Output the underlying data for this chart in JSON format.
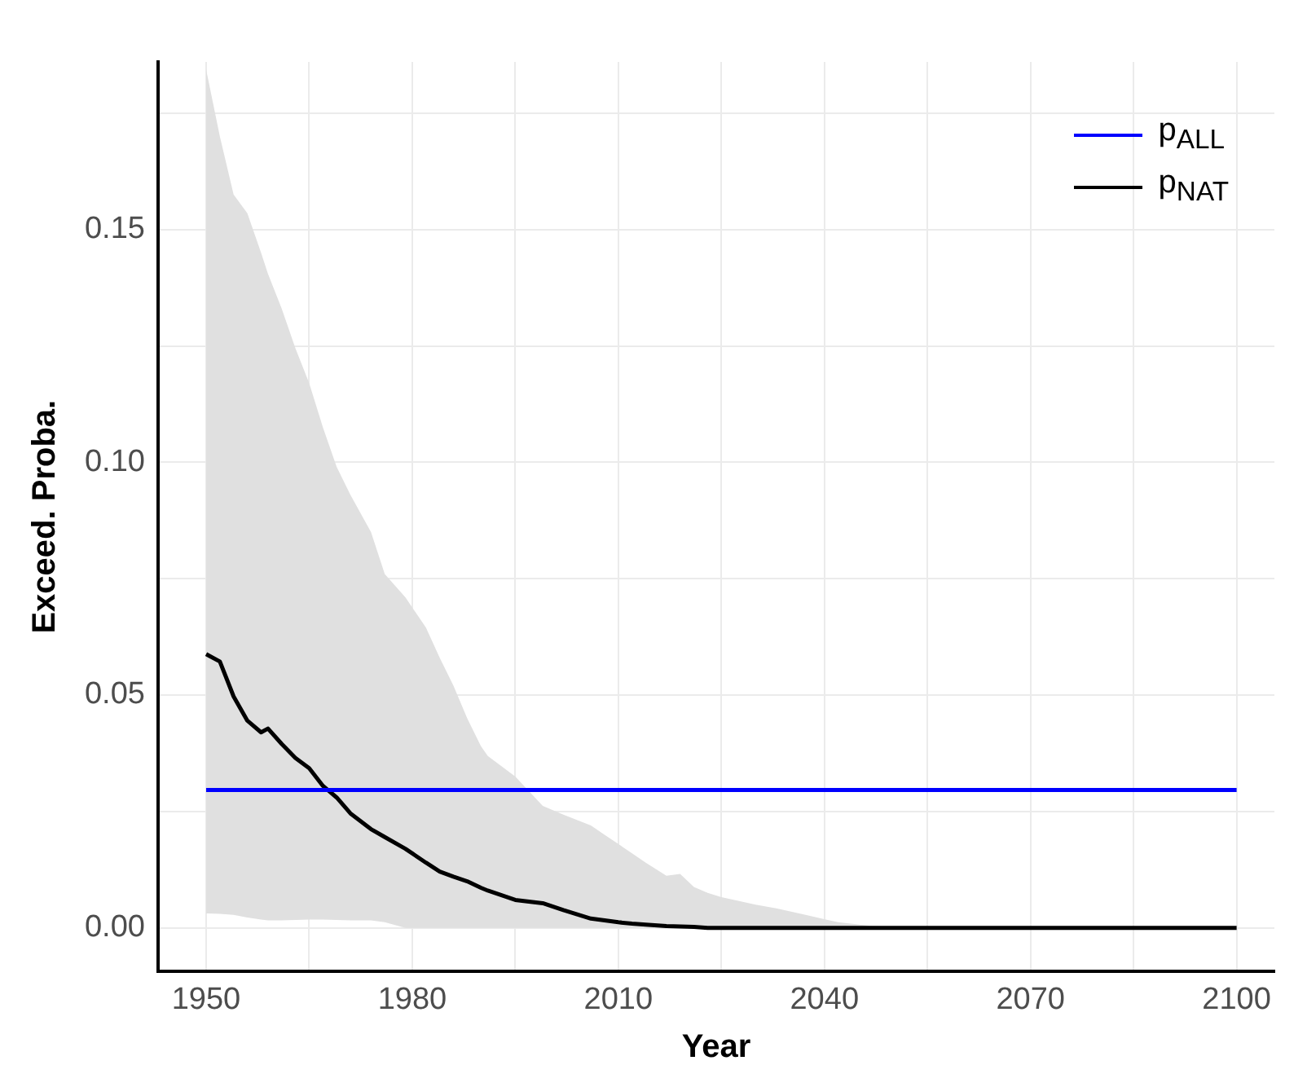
{
  "chart_data": {
    "type": "line",
    "xlabel": "Year",
    "ylabel": "Exceed. Proba.",
    "xlim": [
      1943,
      2105.5
    ],
    "ylim": [
      -0.0094,
      0.186
    ],
    "xticks": [
      {
        "value": 1950,
        "label": "1950"
      },
      {
        "value": 1965,
        "label": null
      },
      {
        "value": 1980,
        "label": "1980"
      },
      {
        "value": 1995,
        "label": null
      },
      {
        "value": 2010,
        "label": "2010"
      },
      {
        "value": 2025,
        "label": null
      },
      {
        "value": 2040,
        "label": "2040"
      },
      {
        "value": 2055,
        "label": null
      },
      {
        "value": 2070,
        "label": "2070"
      },
      {
        "value": 2085,
        "label": null
      },
      {
        "value": 2100,
        "label": "2100"
      }
    ],
    "yticks": [
      {
        "value": 0,
        "label": "0.00"
      },
      {
        "value": 0.025,
        "label": null
      },
      {
        "value": 0.05,
        "label": "0.05"
      },
      {
        "value": 0.075,
        "label": null
      },
      {
        "value": 0.1,
        "label": "0.10"
      },
      {
        "value": 0.125,
        "label": null
      },
      {
        "value": 0.15,
        "label": "0.15"
      },
      {
        "value": 0.175,
        "label": null
      }
    ],
    "grid": true,
    "legend": "top right",
    "marker": "none",
    "line_style": "solid",
    "series": [
      {
        "name": "p$_{ALL}$",
        "color": "#0000ff",
        "x": [
          1950,
          2100
        ],
        "values": [
          0.0296,
          0.0296
        ]
      },
      {
        "name": "p$_{NAT}$",
        "color": "#000000",
        "x": [
          1950,
          1952,
          1954,
          1956,
          1958,
          1959,
          1961,
          1963,
          1965,
          1967,
          1969,
          1971,
          1974,
          1976,
          1979,
          1982,
          1984,
          1986,
          1988,
          1990,
          1991,
          1995,
          1999,
          2002,
          2006,
          2008,
          2010,
          2012,
          2014,
          2017,
          2019,
          2021,
          2023,
          2025,
          2030,
          2033,
          2037,
          2042,
          2047,
          2054,
          2100
        ],
        "values": [
          0.0588,
          0.0572,
          0.0497,
          0.0445,
          0.042,
          0.0428,
          0.0395,
          0.0365,
          0.0343,
          0.0305,
          0.028,
          0.0246,
          0.0212,
          0.0195,
          0.017,
          0.014,
          0.0121,
          0.011,
          0.01,
          0.0086,
          0.008,
          0.006,
          0.0053,
          0.0038,
          0.002,
          0.0016,
          0.0012,
          0.0009,
          0.0007,
          0.0004,
          0.0003,
          0.0002,
          0,
          0,
          0,
          0,
          0,
          0,
          0,
          0,
          0
        ],
        "lower": [
          0.0031,
          0.003,
          0.0028,
          0.0022,
          0.0018,
          0.0016,
          0.0016,
          0.0017,
          0.0018,
          0.0018,
          0.0017,
          0.0016,
          0.0016,
          0.0012,
          0,
          0,
          0,
          0,
          0,
          0,
          0,
          0,
          0,
          0,
          0,
          0,
          0,
          0,
          0,
          0,
          0,
          0,
          0,
          0,
          0,
          0,
          0,
          0,
          0,
          0,
          0
        ],
        "upper": [
          0.1844,
          0.17,
          0.1575,
          0.1535,
          0.145,
          0.1405,
          0.133,
          0.1245,
          0.117,
          0.1075,
          0.099,
          0.093,
          0.085,
          0.076,
          0.071,
          0.0645,
          0.058,
          0.052,
          0.045,
          0.039,
          0.0369,
          0.0325,
          0.0262,
          0.0243,
          0.022,
          0.02,
          0.018,
          0.016,
          0.014,
          0.0112,
          0.0116,
          0.0088,
          0.0075,
          0.0066,
          0.005,
          0.0042,
          0.0029,
          0.0012,
          0.0004,
          0,
          0
        ]
      }
    ]
  }
}
